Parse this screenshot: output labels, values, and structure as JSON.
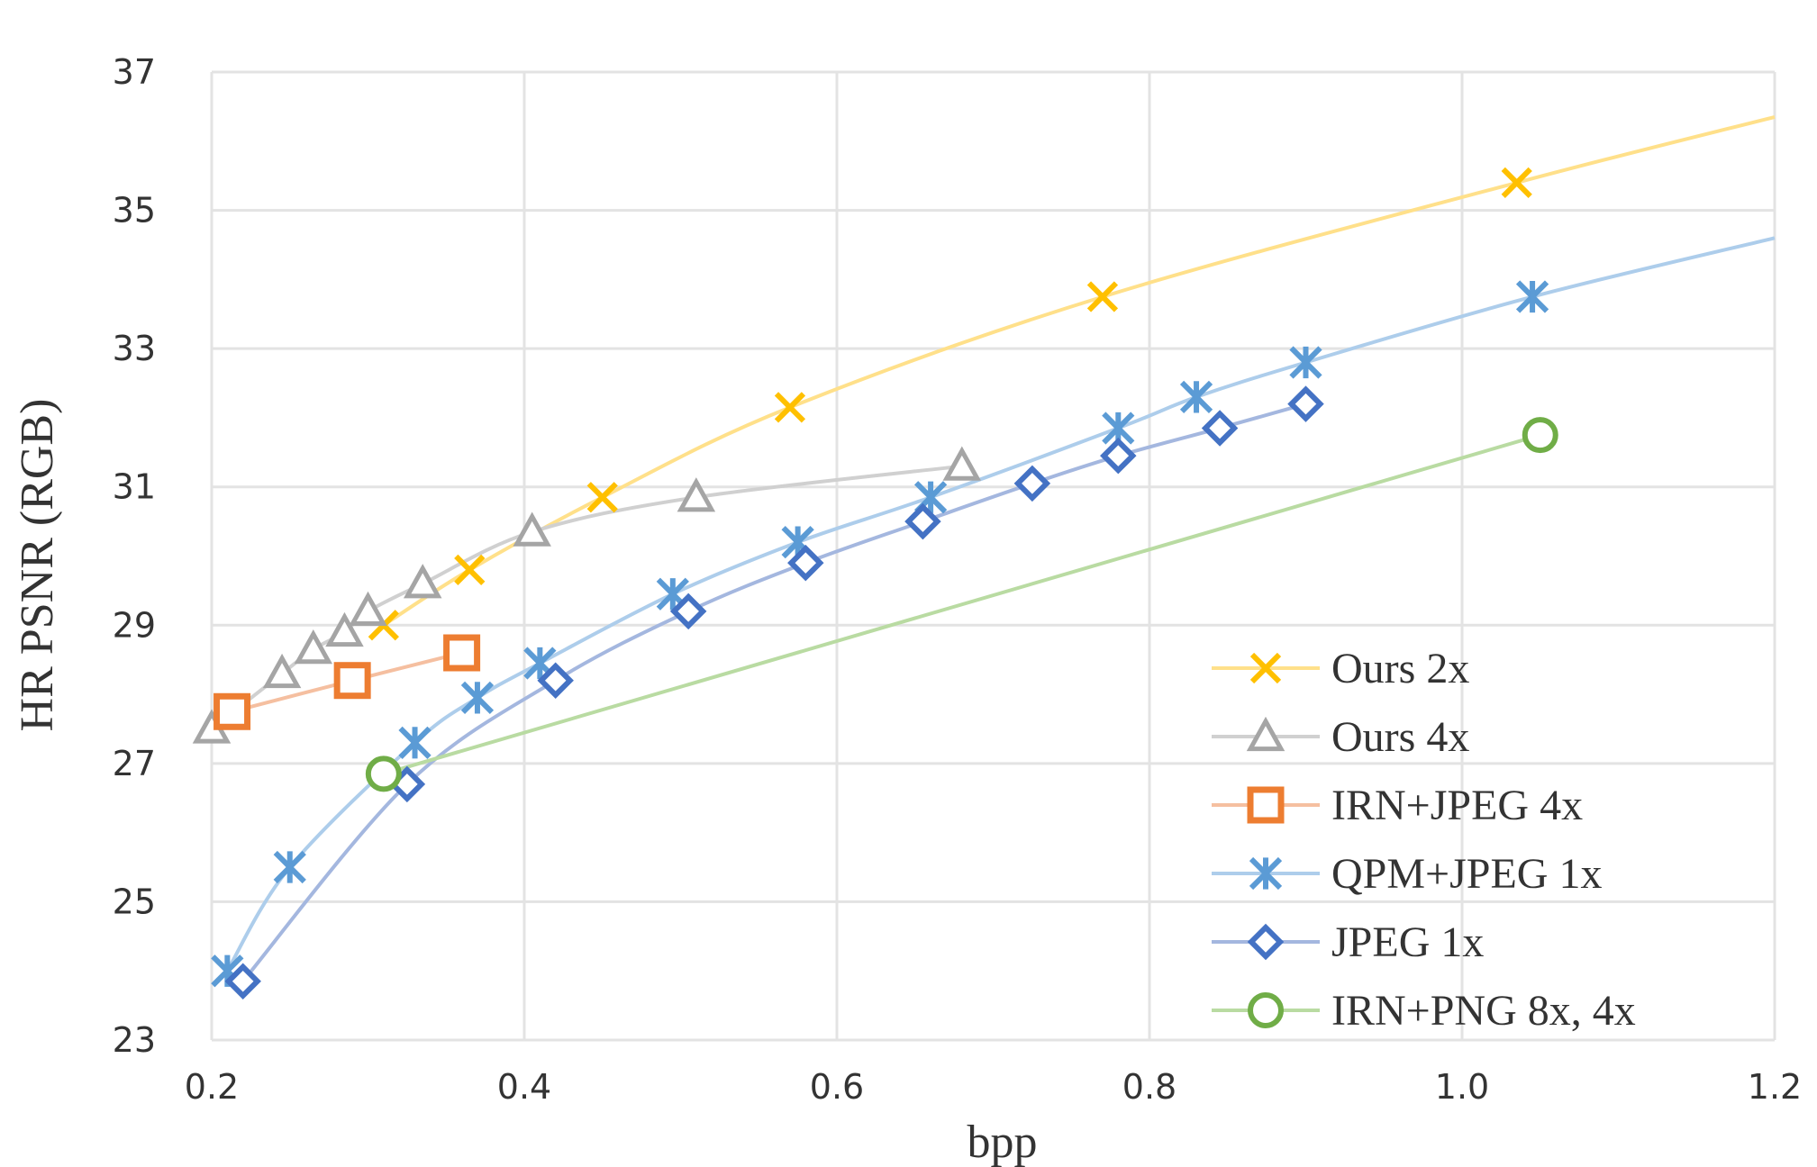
{
  "chart_data": {
    "type": "line",
    "title": "",
    "xlabel": "bpp",
    "ylabel": "HR PSNR (RGB)",
    "xlim": [
      0.2,
      1.2
    ],
    "ylim": [
      23,
      37
    ],
    "xticks": [
      "0.2",
      "0.4",
      "0.6",
      "0.8",
      "1.0",
      "1.2"
    ],
    "yticks": [
      "23",
      "25",
      "27",
      "29",
      "31",
      "33",
      "35",
      "37"
    ],
    "grid": true,
    "legend_position": "bottom-right",
    "series": [
      {
        "name": "Ours 2x",
        "marker": "x",
        "color": "#FFC000",
        "line_color": "#FFE08A",
        "points": [
          [
            0.31,
            29.0
          ],
          [
            0.365,
            29.8
          ],
          [
            0.45,
            30.85
          ],
          [
            0.57,
            32.15
          ],
          [
            0.77,
            33.75
          ],
          [
            1.035,
            35.4
          ]
        ],
        "extend_to": [
          1.2,
          36.35
        ]
      },
      {
        "name": "Ours 4x",
        "marker": "triangle",
        "color": "#A5A5A5",
        "line_color": "#D0D0D0",
        "points": [
          [
            0.2,
            27.5
          ],
          [
            0.245,
            28.3
          ],
          [
            0.265,
            28.65
          ],
          [
            0.285,
            28.9
          ],
          [
            0.3,
            29.2
          ],
          [
            0.335,
            29.6
          ],
          [
            0.405,
            30.35
          ],
          [
            0.51,
            30.85
          ],
          [
            0.68,
            31.3
          ]
        ]
      },
      {
        "name": "IRN+JPEG 4x",
        "marker": "square",
        "color": "#ED7D31",
        "line_color": "#F5BFA0",
        "points": [
          [
            0.213,
            27.75
          ],
          [
            0.29,
            28.2
          ],
          [
            0.36,
            28.6
          ]
        ]
      },
      {
        "name": "QPM+JPEG 1x",
        "marker": "asterisk",
        "color": "#5B9BD5",
        "line_color": "#ADCDEB",
        "points": [
          [
            0.21,
            24.0
          ],
          [
            0.25,
            25.5
          ],
          [
            0.33,
            27.3
          ],
          [
            0.37,
            27.95
          ],
          [
            0.41,
            28.45
          ],
          [
            0.495,
            29.45
          ],
          [
            0.575,
            30.2
          ],
          [
            0.66,
            30.85
          ],
          [
            0.78,
            31.85
          ],
          [
            0.83,
            32.3
          ],
          [
            0.9,
            32.8
          ],
          [
            1.045,
            33.75
          ]
        ],
        "extend_to": [
          1.2,
          34.6
        ]
      },
      {
        "name": "JPEG 1x",
        "marker": "diamond",
        "color": "#4472C4",
        "line_color": "#A4B7DF",
        "points": [
          [
            0.22,
            23.85
          ],
          [
            0.325,
            26.7
          ],
          [
            0.42,
            28.2
          ],
          [
            0.505,
            29.2
          ],
          [
            0.58,
            29.9
          ],
          [
            0.655,
            30.5
          ],
          [
            0.725,
            31.05
          ],
          [
            0.78,
            31.45
          ],
          [
            0.845,
            31.85
          ],
          [
            0.9,
            32.2
          ]
        ]
      },
      {
        "name": "IRN+PNG 8x, 4x",
        "marker": "circle",
        "color": "#70AD47",
        "line_color": "#B9DBA2",
        "points": [
          [
            0.31,
            26.85
          ],
          [
            1.05,
            31.75
          ]
        ]
      }
    ]
  }
}
